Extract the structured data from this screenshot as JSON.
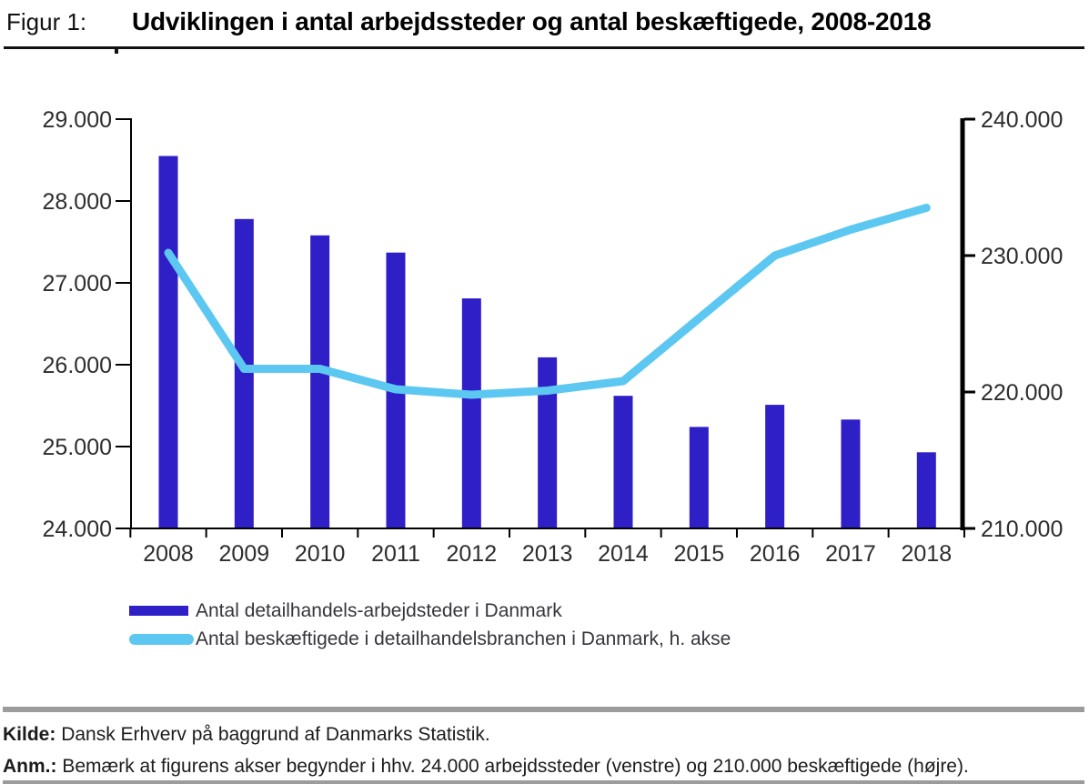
{
  "header": {
    "figure_label": "Figur 1:",
    "title": "Udviklingen i antal arbejdssteder og antal beskæftigede, 2008-2018"
  },
  "chart_data": {
    "type": "combo",
    "categories": [
      "2008",
      "2009",
      "2010",
      "2011",
      "2012",
      "2013",
      "2014",
      "2015",
      "2016",
      "2017",
      "2018"
    ],
    "series": [
      {
        "name": "Antal detailhandels-arbejdsteder i Danmark",
        "type": "bar",
        "axis": "left",
        "color": "#2e1fc6",
        "values": [
          28550,
          27780,
          27580,
          27370,
          26810,
          26090,
          25620,
          25240,
          25510,
          25330,
          24930
        ]
      },
      {
        "name": "Antal beskæftigede i detailhandelsbranchen i Danmark, h. akse",
        "type": "line",
        "axis": "right",
        "color": "#5cc7f1",
        "values": [
          230200,
          221700,
          221700,
          220200,
          219800,
          220100,
          220800,
          225400,
          230000,
          231900,
          233500
        ]
      }
    ],
    "left_axis": {
      "min": 24000,
      "max": 29000,
      "tick_values": [
        24000,
        25000,
        26000,
        27000,
        28000,
        29000
      ],
      "tick_labels": [
        "24.000",
        "25.000",
        "26.000",
        "27.000",
        "28.000",
        "29.000"
      ]
    },
    "right_axis": {
      "min": 210000,
      "max": 240000,
      "tick_values": [
        210000,
        220000,
        230000,
        240000
      ],
      "tick_labels": [
        "210.000",
        "220.000",
        "230.000",
        "240.000"
      ]
    },
    "grid": false,
    "legend_position": "bottom-left"
  },
  "footer": {
    "kilde_label": "Kilde:",
    "kilde_text": "Dansk Erhverv på baggrund af Danmarks Statistik.",
    "anm_label": "Anm.:",
    "anm_text": "Bemærk at figurens akser begynder i hhv. 24.000 arbejdssteder (venstre) og 210.000 beskæftigede (højre)."
  },
  "colors": {
    "bar": "#2e1fc6",
    "line": "#5cc7f1",
    "axis": "#000000",
    "tick_label": "#2d2d2d",
    "rule_gray": "#9c9c9c"
  }
}
